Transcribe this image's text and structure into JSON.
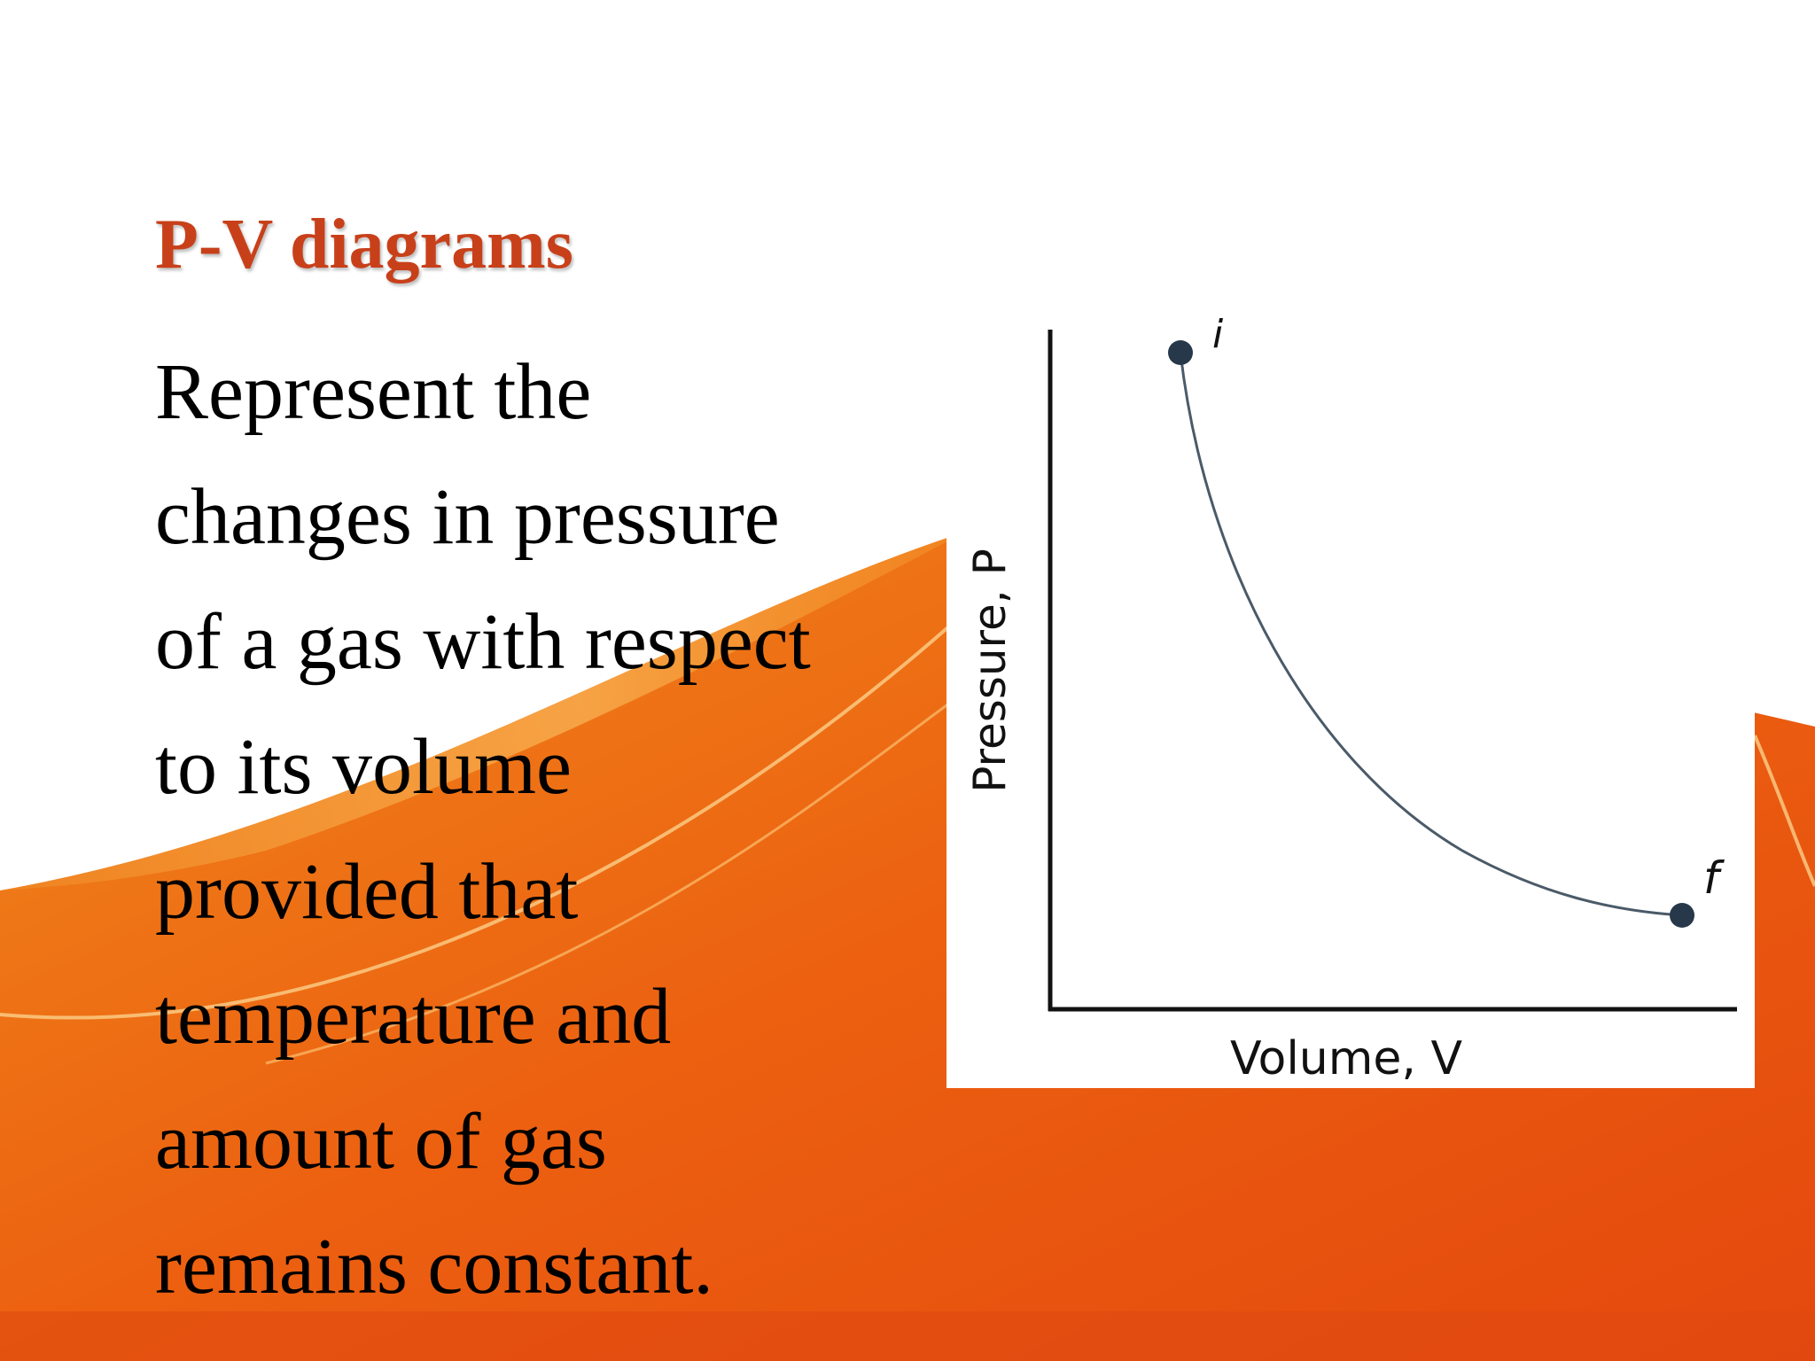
{
  "header": {
    "title": "P-V diagrams"
  },
  "body": {
    "lines": [
      "Represent the",
      "changes in pressure",
      "of a gas with respect",
      "to its volume",
      "provided that",
      "temperature and",
      "amount of gas",
      "remains constant."
    ]
  },
  "diagram": {
    "initial_label": "i",
    "final_label": "f",
    "x_label": "Volume, V",
    "y_label": "Pressure, P"
  }
}
